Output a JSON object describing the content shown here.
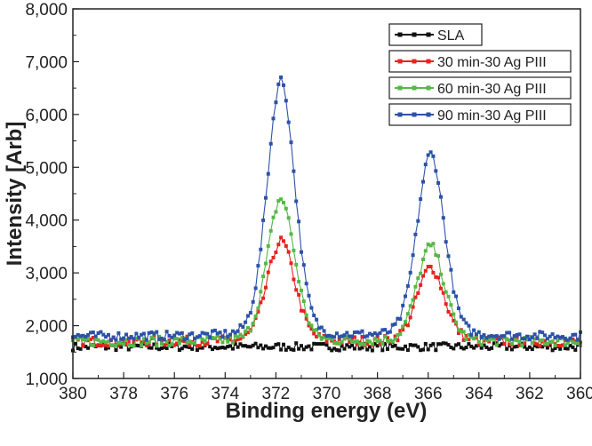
{
  "chart_data": {
    "type": "line",
    "title": "",
    "xlabel": "Binding energy (eV)",
    "ylabel": "Intensity [Arb]",
    "xlim": [
      380,
      360
    ],
    "ylim": [
      1000,
      8000
    ],
    "x_reversed": true,
    "x_ticks": [
      "380",
      "378",
      "376",
      "374",
      "372",
      "370",
      "368",
      "366",
      "364",
      "362",
      "360"
    ],
    "y_ticks": [
      "1,000",
      "2,000",
      "3,000",
      "4,000",
      "5,000",
      "6,000",
      "7,000",
      "8,000"
    ],
    "legend_position": "top-right",
    "series": [
      {
        "name": "SLA",
        "color": "#111111",
        "baseline": 1600,
        "peaks": [],
        "x": [
          380,
          376,
          373,
          372,
          370,
          368,
          366,
          364,
          360
        ],
        "values": [
          1600,
          1600,
          1600,
          1650,
          1550,
          1550,
          1600,
          1580,
          1620
        ]
      },
      {
        "name": "30 min-30 Ag PIII",
        "color": "#e8231f",
        "baseline": 1700,
        "peaks": [
          {
            "center": 371.8,
            "height": 3600,
            "width": 0.55
          },
          {
            "center": 365.9,
            "height": 3100,
            "width": 0.55
          }
        ],
        "x": [
          380,
          374,
          372,
          371.8,
          370,
          368,
          366,
          365.9,
          364,
          360
        ],
        "values": [
          1700,
          1700,
          3400,
          3600,
          1950,
          1750,
          3050,
          3100,
          1780,
          1800
        ]
      },
      {
        "name": "60 min-30 Ag PIII",
        "color": "#56b847",
        "baseline": 1700,
        "peaks": [
          {
            "center": 371.8,
            "height": 4400,
            "width": 0.55
          },
          {
            "center": 365.9,
            "height": 3500,
            "width": 0.55
          }
        ],
        "x": [
          380,
          374,
          372,
          371.8,
          370,
          368,
          366,
          365.9,
          364,
          360
        ],
        "values": [
          1700,
          1700,
          4100,
          4400,
          2000,
          1800,
          3450,
          3500,
          1850,
          1850
        ]
      },
      {
        "name": "90 min-30 Ag PIII",
        "color": "#2c52a8",
        "baseline": 1800,
        "peaks": [
          {
            "center": 371.8,
            "height": 6650,
            "width": 0.55
          },
          {
            "center": 365.9,
            "height": 5250,
            "width": 0.55
          }
        ],
        "x": [
          380,
          374,
          372,
          371.8,
          370,
          368,
          366,
          365.9,
          364,
          360
        ],
        "values": [
          1750,
          1800,
          6300,
          6650,
          2100,
          1950,
          5150,
          5250,
          2050,
          2150
        ]
      }
    ]
  }
}
